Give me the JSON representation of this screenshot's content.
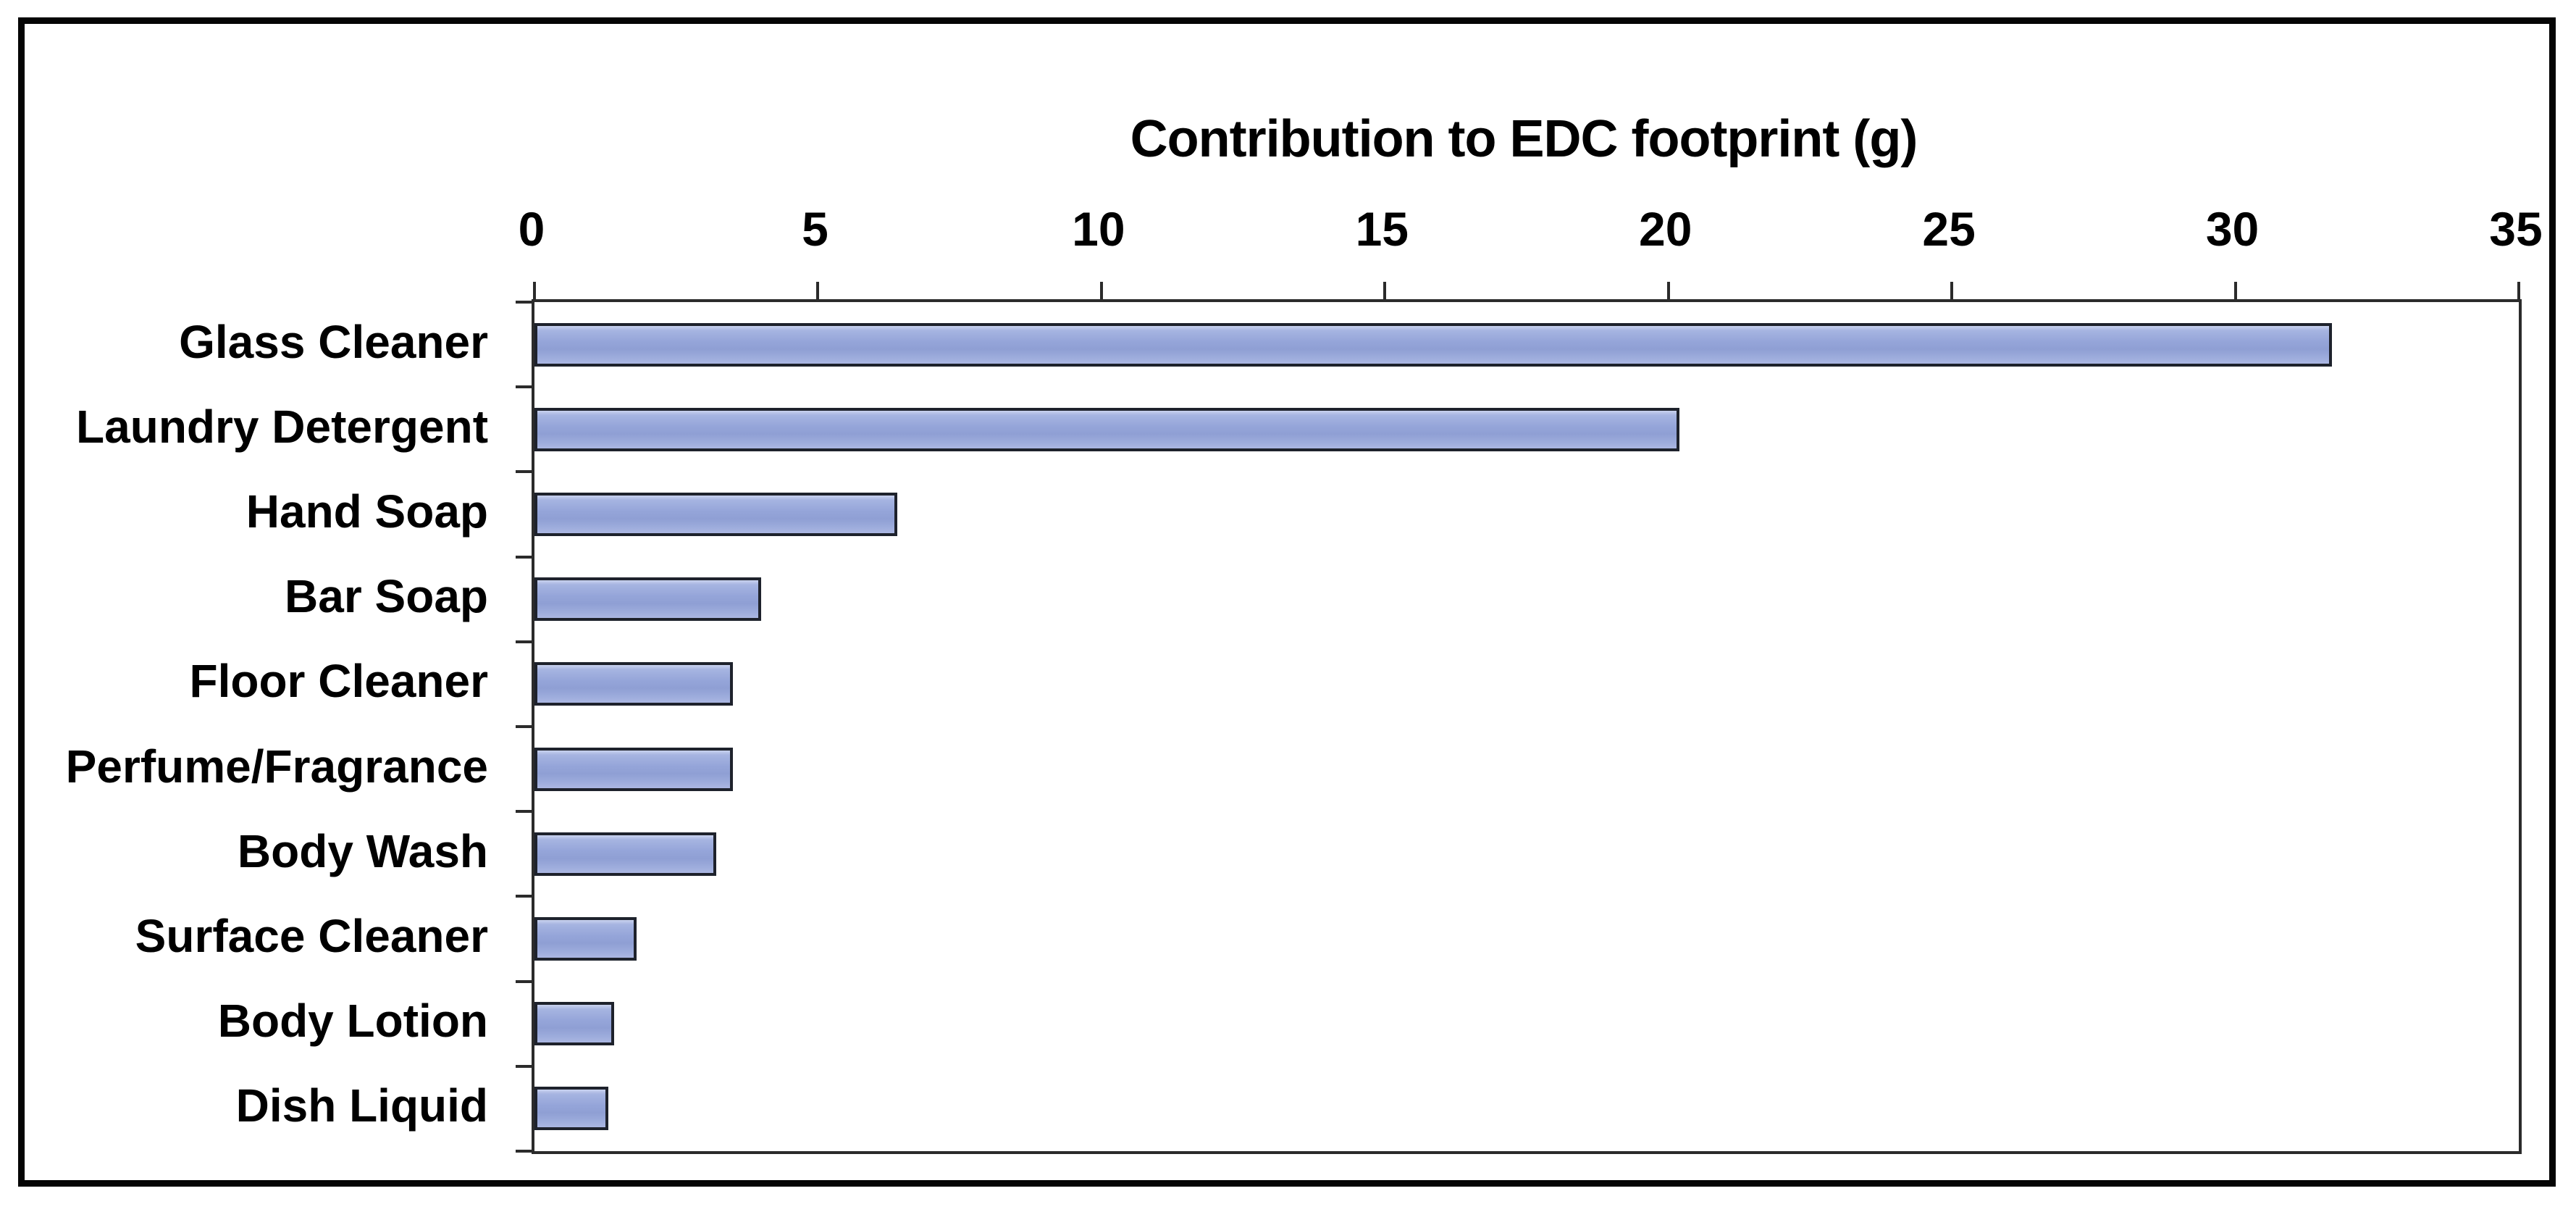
{
  "chart_data": {
    "type": "bar",
    "orientation": "horizontal",
    "title": "Contribution to EDC footprint (g)",
    "categories": [
      "Glass Cleaner",
      "Laundry Detergent",
      "Hand Soap",
      "Bar Soap",
      "Floor Cleaner",
      "Perfume/Fragrance",
      "Body Wash",
      "Surface Cleaner",
      "Body Lotion",
      "Dish Liquid"
    ],
    "values": [
      31.7,
      20.2,
      6.4,
      4.0,
      3.5,
      3.5,
      3.2,
      1.8,
      1.4,
      1.3
    ],
    "xlabel": "Contribution to EDC footprint (g)",
    "ylabel": "",
    "x_axis": {
      "position": "top",
      "min": 0,
      "max": 35,
      "tick_step": 5,
      "tick_labels": [
        "0",
        "5",
        "10",
        "15",
        "20",
        "25",
        "30",
        "35"
      ]
    },
    "legend_position": "none",
    "grid": false,
    "sort_order": "descending",
    "colors": {
      "bar_fill": "#95a5d9",
      "bar_fill_light": "#c9d2ee",
      "bar_border": "#1e222c",
      "axis_line": "#2b2b2b",
      "text": "#000000",
      "figure_border": "#050505",
      "background": "#ffffff"
    }
  }
}
